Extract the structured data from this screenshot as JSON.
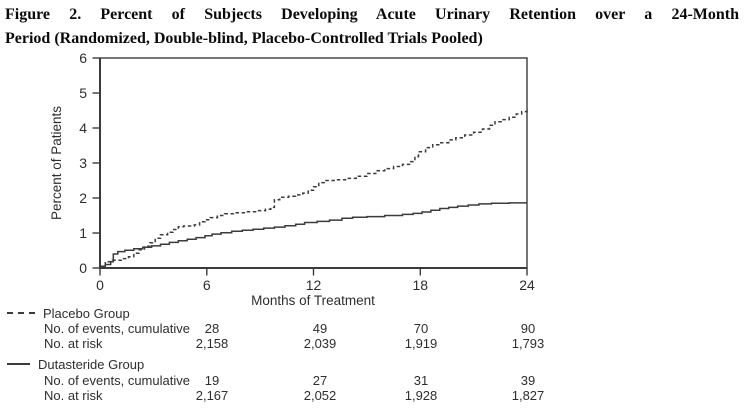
{
  "figure": {
    "title_line1": "Figure 2. Percent of Subjects Developing Acute Urinary Retention over a 24-Month",
    "title_line2": "Period (Randomized, Double-blind, Placebo-Controlled Trials Pooled)"
  },
  "chart_data": {
    "type": "line",
    "title": "Percent of Subjects Developing Acute Urinary Retention over a 24-Month Period (Randomized, Double-blind, Placebo-Controlled Trials Pooled)",
    "xlabel": "Months of Treatment",
    "ylabel": "Percent of Patients",
    "xlim": [
      0,
      24
    ],
    "ylim": [
      0,
      6
    ],
    "x_ticks": [
      0,
      6,
      12,
      18,
      24
    ],
    "y_ticks": [
      0,
      1,
      2,
      3,
      4,
      5,
      6
    ],
    "grid": false,
    "legend_position": "below-left",
    "series": [
      {
        "name": "Placebo Group",
        "style": "dashed",
        "points": [
          [
            0,
            0.05
          ],
          [
            0.3,
            0.18
          ],
          [
            0.7,
            0.22
          ],
          [
            1.2,
            0.27
          ],
          [
            1.6,
            0.32
          ],
          [
            1.9,
            0.42
          ],
          [
            2.2,
            0.52
          ],
          [
            2.5,
            0.62
          ],
          [
            2.8,
            0.72
          ],
          [
            3.1,
            0.85
          ],
          [
            3.4,
            0.95
          ],
          [
            3.8,
            1.02
          ],
          [
            4.1,
            1.1
          ],
          [
            4.4,
            1.18
          ],
          [
            4.7,
            1.2
          ],
          [
            5.3,
            1.23
          ],
          [
            5.6,
            1.32
          ],
          [
            5.9,
            1.38
          ],
          [
            6.2,
            1.44
          ],
          [
            6.6,
            1.5
          ],
          [
            7.0,
            1.55
          ],
          [
            7.5,
            1.58
          ],
          [
            8.2,
            1.61
          ],
          [
            8.8,
            1.64
          ],
          [
            9.3,
            1.68
          ],
          [
            9.6,
            1.73
          ],
          [
            9.8,
            1.95
          ],
          [
            10.1,
            2.02
          ],
          [
            10.6,
            2.05
          ],
          [
            11.0,
            2.09
          ],
          [
            11.4,
            2.14
          ],
          [
            11.7,
            2.22
          ],
          [
            12.0,
            2.32
          ],
          [
            12.3,
            2.44
          ],
          [
            12.6,
            2.5
          ],
          [
            13.2,
            2.52
          ],
          [
            13.8,
            2.56
          ],
          [
            14.4,
            2.62
          ],
          [
            15.0,
            2.7
          ],
          [
            15.5,
            2.78
          ],
          [
            16.0,
            2.84
          ],
          [
            16.5,
            2.9
          ],
          [
            17.0,
            2.96
          ],
          [
            17.4,
            3.04
          ],
          [
            17.7,
            3.18
          ],
          [
            17.9,
            3.32
          ],
          [
            18.3,
            3.44
          ],
          [
            18.7,
            3.52
          ],
          [
            19.1,
            3.58
          ],
          [
            19.6,
            3.66
          ],
          [
            20.0,
            3.72
          ],
          [
            20.5,
            3.8
          ],
          [
            21.0,
            3.88
          ],
          [
            21.5,
            3.97
          ],
          [
            21.9,
            4.08
          ],
          [
            22.2,
            4.18
          ],
          [
            22.6,
            4.24
          ],
          [
            23.0,
            4.31
          ],
          [
            23.4,
            4.4
          ],
          [
            23.7,
            4.47
          ],
          [
            24,
            4.56
          ]
        ]
      },
      {
        "name": "Dutasteride Group",
        "style": "solid",
        "points": [
          [
            0,
            0.05
          ],
          [
            0.3,
            0.1
          ],
          [
            0.6,
            0.18
          ],
          [
            0.75,
            0.4
          ],
          [
            1.0,
            0.47
          ],
          [
            1.4,
            0.51
          ],
          [
            1.9,
            0.55
          ],
          [
            2.4,
            0.59
          ],
          [
            2.9,
            0.63
          ],
          [
            3.4,
            0.68
          ],
          [
            3.9,
            0.73
          ],
          [
            4.4,
            0.78
          ],
          [
            4.9,
            0.82
          ],
          [
            5.4,
            0.87
          ],
          [
            5.9,
            0.92
          ],
          [
            6.3,
            0.97
          ],
          [
            6.8,
            1.01
          ],
          [
            7.4,
            1.05
          ],
          [
            8.0,
            1.08
          ],
          [
            8.6,
            1.11
          ],
          [
            9.2,
            1.14
          ],
          [
            9.8,
            1.17
          ],
          [
            10.4,
            1.21
          ],
          [
            11.0,
            1.25
          ],
          [
            11.5,
            1.3
          ],
          [
            12.2,
            1.33
          ],
          [
            12.9,
            1.37
          ],
          [
            13.6,
            1.42
          ],
          [
            14.2,
            1.45
          ],
          [
            15.0,
            1.47
          ],
          [
            16.0,
            1.5
          ],
          [
            17.0,
            1.53
          ],
          [
            17.6,
            1.56
          ],
          [
            18.1,
            1.6
          ],
          [
            18.6,
            1.65
          ],
          [
            19.1,
            1.7
          ],
          [
            19.6,
            1.73
          ],
          [
            20.1,
            1.77
          ],
          [
            20.7,
            1.8
          ],
          [
            21.3,
            1.83
          ],
          [
            22.0,
            1.85
          ],
          [
            23.0,
            1.86
          ],
          [
            24,
            1.86
          ]
        ]
      }
    ]
  },
  "legend_table": {
    "groups": [
      {
        "name": "Placebo Group",
        "line_style": "dashed",
        "rows": [
          {
            "label": "No. of events, cumulative",
            "values": [
              "28",
              "49",
              "70",
              "90"
            ]
          },
          {
            "label": "No. at risk",
            "values": [
              "2,158",
              "2,039",
              "1,919",
              "1,793"
            ]
          }
        ]
      },
      {
        "name": "Dutasteride Group",
        "line_style": "solid",
        "rows": [
          {
            "label": "No. of events, cumulative",
            "values": [
              "19",
              "27",
              "31",
              "39"
            ]
          },
          {
            "label": "No. at risk",
            "values": [
              "2,167",
              "2,052",
              "1,928",
              "1,827"
            ]
          }
        ]
      }
    ]
  },
  "colors": {
    "text": "#2e2e2e",
    "title_text": "#0b0b0b",
    "line": "#3b3b3b",
    "background": "#ffffff"
  }
}
